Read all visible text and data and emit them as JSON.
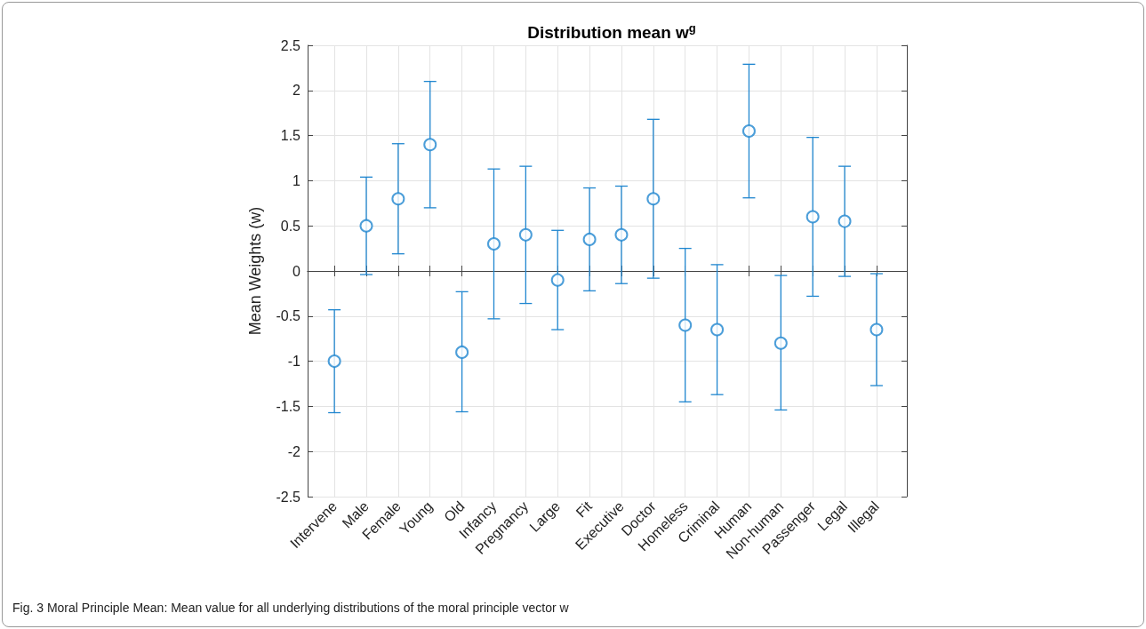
{
  "chart_data": {
    "type": "scatter",
    "title": "Distribution mean w$^{g}$",
    "ylabel": "Mean Weights (w)",
    "categories": [
      "Intervene",
      "Male",
      "Female",
      "Young",
      "Old",
      "Infancy",
      "Pregnancy",
      "Large",
      "Fit",
      "Executive",
      "Doctor",
      "Homeless",
      "Criminal",
      "Human",
      "Non-human",
      "Passenger",
      "Legal",
      "Illegal"
    ],
    "values": [
      -1.0,
      0.5,
      0.8,
      1.4,
      -0.9,
      0.3,
      0.4,
      -0.1,
      0.35,
      0.4,
      0.8,
      -0.6,
      -0.65,
      1.55,
      -0.8,
      0.6,
      0.55,
      -0.65
    ],
    "errors": [
      [
        -1.57,
        -0.43
      ],
      [
        -0.04,
        1.04
      ],
      [
        0.19,
        1.41
      ],
      [
        0.7,
        2.1
      ],
      [
        -1.56,
        -0.23
      ],
      [
        -0.53,
        1.13
      ],
      [
        -0.36,
        1.16
      ],
      [
        -0.65,
        0.45
      ],
      [
        -0.22,
        0.92
      ],
      [
        -0.14,
        0.94
      ],
      [
        -0.08,
        1.68
      ],
      [
        -1.45,
        0.25
      ],
      [
        -1.37,
        0.07
      ],
      [
        0.81,
        2.29
      ],
      [
        -1.54,
        -0.05
      ],
      [
        -0.28,
        1.48
      ],
      [
        -0.06,
        1.16
      ],
      [
        -1.27,
        -0.03
      ]
    ],
    "color": "#1f86cf",
    "marker": "circle",
    "grid": true,
    "ylim": [
      -2.5,
      2.5
    ],
    "yticks": [
      -2.5,
      -2,
      -1.5,
      -1,
      -0.5,
      0,
      0.5,
      1,
      1.5,
      2,
      2.5
    ],
    "annotations": [
      "Fig. 3 Moral Principle Mean: Mean value for all underlying distributions of the moral principle vector w"
    ]
  }
}
